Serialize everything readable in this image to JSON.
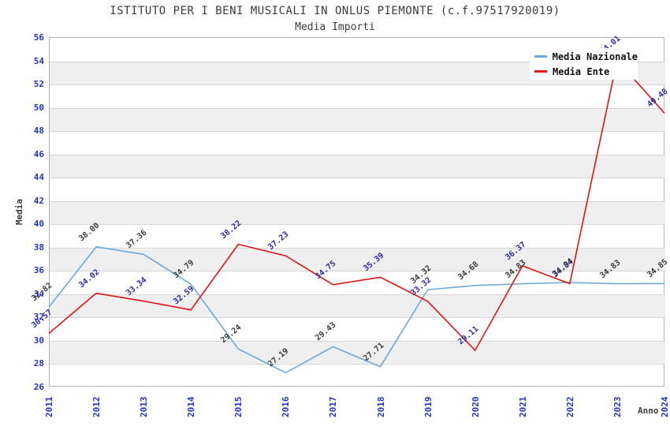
{
  "title": "ISTITUTO PER I BENI MUSICALI IN ONLUS PIEMONTE (c.f.97517920019)",
  "subtitle": "Media Importi",
  "chart_data": {
    "type": "line",
    "x": [
      "2011",
      "2012",
      "2013",
      "2014",
      "2015",
      "2016",
      "2017",
      "2018",
      "2019",
      "2020",
      "2021",
      "2022",
      "2023",
      "2024"
    ],
    "series": [
      {
        "name": "Media Nazionale",
        "color": "#6fa8dc",
        "label_color": "#3a3a3a",
        "values": [
          32.82,
          38.0,
          37.36,
          34.79,
          29.24,
          27.19,
          29.43,
          27.71,
          34.32,
          34.68,
          34.83,
          34.94,
          34.83,
          34.85
        ]
      },
      {
        "name": "Media Ente",
        "color": "#e01414",
        "label_color": "#2a2ab0",
        "values": [
          30.57,
          34.02,
          33.34,
          32.59,
          38.22,
          37.23,
          34.75,
          35.39,
          33.32,
          29.11,
          36.37,
          34.84,
          54.01,
          49.48
        ]
      }
    ],
    "xlabel": "Anno",
    "ylabel": "Media",
    "ylim": [
      26,
      56
    ],
    "ytick_step": 2,
    "grid": true,
    "bands": true,
    "legend_position": "top-right"
  },
  "colors": {
    "axis_tick": "#2233cc",
    "band": "#efefef",
    "grid_line": "#d6d6d6",
    "plot_border": "#b3b3b3",
    "title_text": "#3a3a3a",
    "legend_bg": "#ffffff"
  }
}
